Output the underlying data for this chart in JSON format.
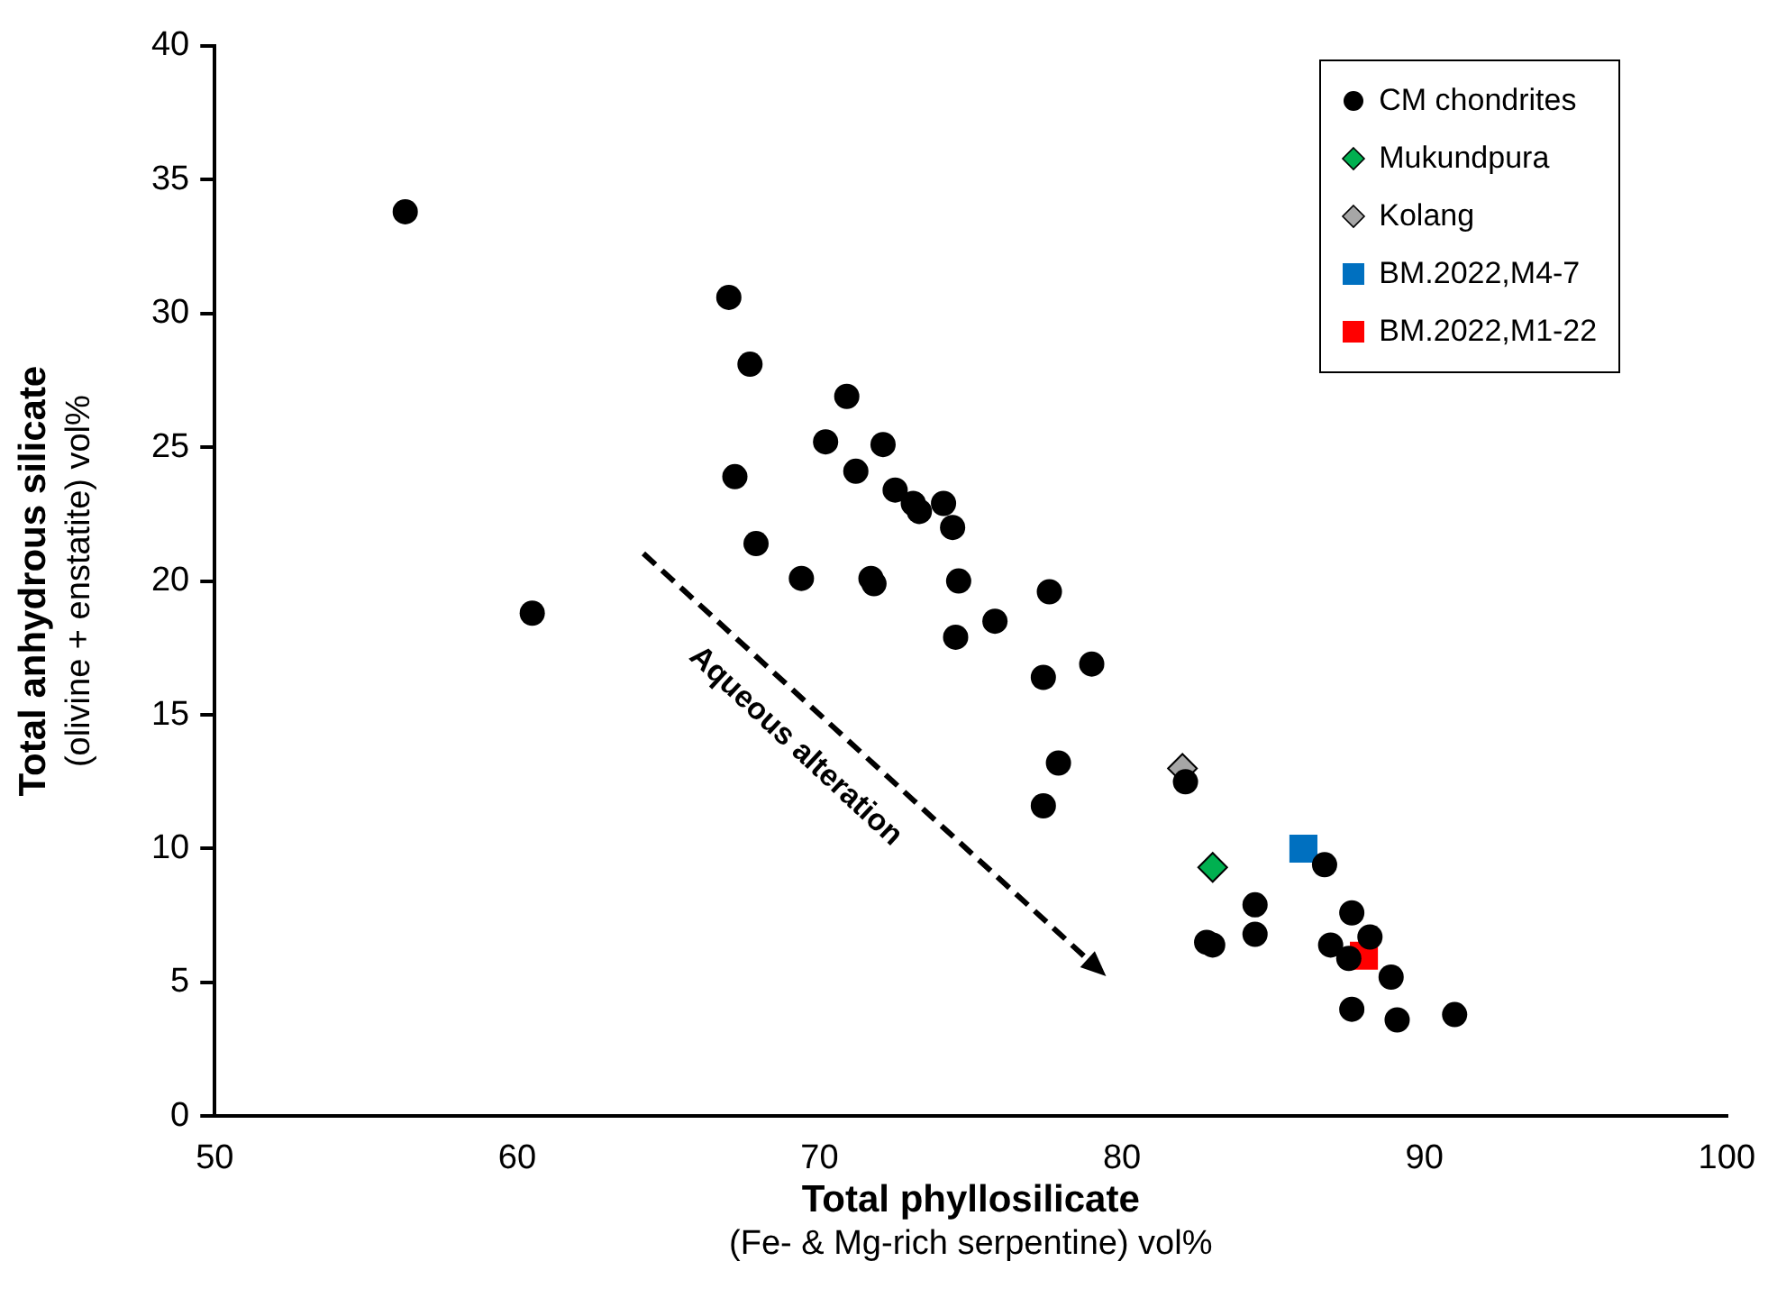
{
  "chart_data": {
    "type": "scatter",
    "xlabel": "Total phyllosilicate\n(Fe- & Mg-rich serpentine) vol%",
    "ylabel": "Total anhydrous silicate\n(olivine + enstatite) vol%",
    "xlim": [
      50,
      100
    ],
    "xticks": [
      50,
      60,
      70,
      80,
      90,
      100
    ],
    "ylim": [
      0,
      40
    ],
    "yticks": [
      0,
      5,
      10,
      15,
      20,
      25,
      30,
      35,
      40
    ],
    "grid": false,
    "legend": "top right",
    "annotations": [
      "Aqueous alteration"
    ],
    "series": [
      {
        "name": "CM chondrites",
        "color": "#000000",
        "marker": "circle",
        "x": [
          56.3,
          60.5,
          67.0,
          67.7,
          67.2,
          67.9,
          69.4,
          70.2,
          70.9,
          71.2,
          71.7,
          71.8,
          72.1,
          72.5,
          73.1,
          73.3,
          74.1,
          74.4,
          74.6,
          74.5,
          75.8,
          77.6,
          79.0,
          77.4,
          77.9,
          77.4,
          82.1,
          82.8,
          83.0,
          84.4,
          84.4,
          86.7,
          87.6,
          86.9,
          88.2,
          87.5,
          88.9,
          87.6,
          89.1,
          91.0
        ],
        "values": [
          33.8,
          18.8,
          30.6,
          28.1,
          23.9,
          21.4,
          20.1,
          25.2,
          26.9,
          24.1,
          20.1,
          19.9,
          25.1,
          23.4,
          22.9,
          22.6,
          22.9,
          22.0,
          20.0,
          17.9,
          18.5,
          19.6,
          16.9,
          16.4,
          13.2,
          11.6,
          12.5,
          6.5,
          6.4,
          7.9,
          6.8,
          9.4,
          7.6,
          6.4,
          6.7,
          5.9,
          5.2,
          4.0,
          3.6,
          3.8
        ]
      },
      {
        "name": "Mukundpura",
        "color": "#00b050",
        "marker": "diamond",
        "x": [
          83.0
        ],
        "values": [
          9.3
        ]
      },
      {
        "name": "Kolang",
        "color": "#a6a6a6",
        "marker": "diamond",
        "x": [
          82.0
        ],
        "values": [
          13.0
        ]
      },
      {
        "name": "BM.2022,M4-7",
        "color": "#0070c0",
        "marker": "square",
        "x": [
          86.0
        ],
        "values": [
          10.0
        ]
      },
      {
        "name": "BM.2022,M1-22",
        "color": "#ff0000",
        "marker": "square",
        "x": [
          88.0
        ],
        "values": [
          6.0
        ]
      }
    ]
  }
}
